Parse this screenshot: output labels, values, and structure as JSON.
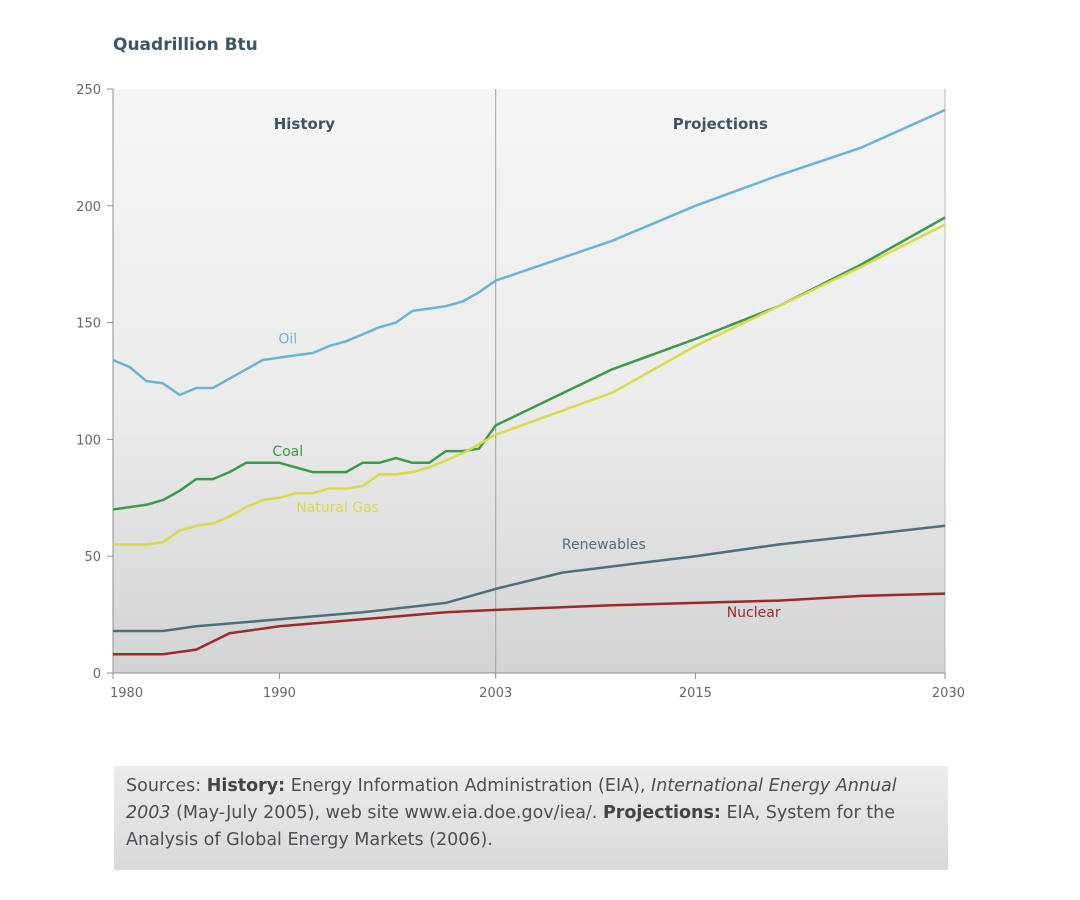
{
  "chart_data": {
    "type": "line",
    "unit_label": "Quadrillion Btu",
    "ylim": [
      0,
      250
    ],
    "yticks": [
      0,
      50,
      100,
      150,
      200,
      250
    ],
    "xlim": [
      1980,
      2030
    ],
    "xticks": [
      1980,
      1990,
      2003,
      2015,
      2030
    ],
    "divider_year": 2003,
    "regions": [
      "History",
      "Projections"
    ],
    "grid": false,
    "series": [
      {
        "name": "Oil",
        "color": "#6bb3d2",
        "x": [
          1980,
          1981,
          1982,
          1983,
          1984,
          1985,
          1986,
          1987,
          1988,
          1989,
          1990,
          1991,
          1992,
          1993,
          1994,
          1995,
          1996,
          1997,
          1998,
          1999,
          2000,
          2001,
          2002,
          2003,
          2010,
          2015,
          2020,
          2025,
          2030
        ],
        "y": [
          134,
          131,
          125,
          124,
          119,
          122,
          122,
          126,
          130,
          134,
          135,
          136,
          137,
          140,
          142,
          145,
          148,
          150,
          155,
          156,
          157,
          159,
          163,
          168,
          185,
          200,
          213,
          225,
          241
        ]
      },
      {
        "name": "Coal",
        "color": "#3a9a4a",
        "x": [
          1980,
          1981,
          1982,
          1983,
          1984,
          1985,
          1986,
          1987,
          1988,
          1989,
          1990,
          1991,
          1992,
          1993,
          1994,
          1995,
          1996,
          1997,
          1998,
          1999,
          2000,
          2001,
          2002,
          2003,
          2010,
          2015,
          2020,
          2025,
          2030
        ],
        "y": [
          70,
          71,
          72,
          74,
          78,
          83,
          83,
          86,
          90,
          90,
          90,
          88,
          86,
          86,
          86,
          90,
          90,
          92,
          90,
          90,
          95,
          95,
          96,
          106,
          130,
          143,
          157,
          175,
          195
        ]
      },
      {
        "name": "Natural Gas",
        "color": "#d9d94a",
        "x": [
          1980,
          1981,
          1982,
          1983,
          1984,
          1985,
          1986,
          1987,
          1988,
          1989,
          1990,
          1991,
          1992,
          1993,
          1994,
          1995,
          1996,
          1997,
          1998,
          1999,
          2000,
          2001,
          2002,
          2003,
          2010,
          2015,
          2020,
          2025,
          2030
        ],
        "y": [
          55,
          55,
          55,
          56,
          61,
          63,
          64,
          67,
          71,
          74,
          75,
          77,
          77,
          79,
          79,
          80,
          85,
          85,
          86,
          88,
          91,
          94,
          98,
          102,
          120,
          140,
          157,
          174,
          192
        ]
      },
      {
        "name": "Renewables",
        "color": "#4f6e7c",
        "x": [
          1980,
          1983,
          1985,
          1990,
          1995,
          2000,
          2003,
          2007,
          2015,
          2020,
          2025,
          2030
        ],
        "y": [
          18,
          18,
          20,
          23,
          26,
          30,
          36,
          43,
          50,
          55,
          59,
          63
        ]
      },
      {
        "name": "Nuclear",
        "color": "#9b2a2a",
        "x": [
          1980,
          1983,
          1985,
          1987,
          1990,
          1995,
          2000,
          2003,
          2010,
          2015,
          2020,
          2025,
          2030
        ],
        "y": [
          8,
          8,
          10,
          17,
          20,
          23,
          26,
          27,
          29,
          30,
          31,
          33,
          34
        ]
      }
    ]
  },
  "sources": {
    "prefix": "Sources: ",
    "history_label": "History:",
    "history_text": " Energy Information Administration (EIA), ",
    "history_title": "International Energy Annual 2003",
    "history_tail": " (May-July 2005), web site www.eia.doe.gov/iea/. ",
    "projections_label": "Projections:",
    "projections_text": " EIA, System for the Analysis of Global Energy Markets (2006)."
  }
}
